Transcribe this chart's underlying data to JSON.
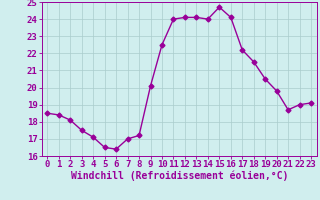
{
  "x": [
    0,
    1,
    2,
    3,
    4,
    5,
    6,
    7,
    8,
    9,
    10,
    11,
    12,
    13,
    14,
    15,
    16,
    17,
    18,
    19,
    20,
    21,
    22,
    23
  ],
  "y": [
    18.5,
    18.4,
    18.1,
    17.5,
    17.1,
    16.5,
    16.4,
    17.0,
    17.2,
    20.1,
    22.5,
    24.0,
    24.1,
    24.1,
    24.0,
    24.7,
    24.1,
    22.2,
    21.5,
    20.5,
    19.8,
    18.7,
    19.0,
    19.1
  ],
  "color": "#990099",
  "bg_color": "#d0eeee",
  "grid_color": "#aacccc",
  "xlabel": "Windchill (Refroidissement éolien,°C)",
  "ylim": [
    16,
    25
  ],
  "xlim": [
    -0.5,
    23.5
  ],
  "yticks": [
    16,
    17,
    18,
    19,
    20,
    21,
    22,
    23,
    24,
    25
  ],
  "xticks": [
    0,
    1,
    2,
    3,
    4,
    5,
    6,
    7,
    8,
    9,
    10,
    11,
    12,
    13,
    14,
    15,
    16,
    17,
    18,
    19,
    20,
    21,
    22,
    23
  ],
  "xlabel_fontsize": 7,
  "tick_fontsize": 6.5,
  "marker": "D",
  "marker_size": 2.5,
  "line_width": 1.0
}
